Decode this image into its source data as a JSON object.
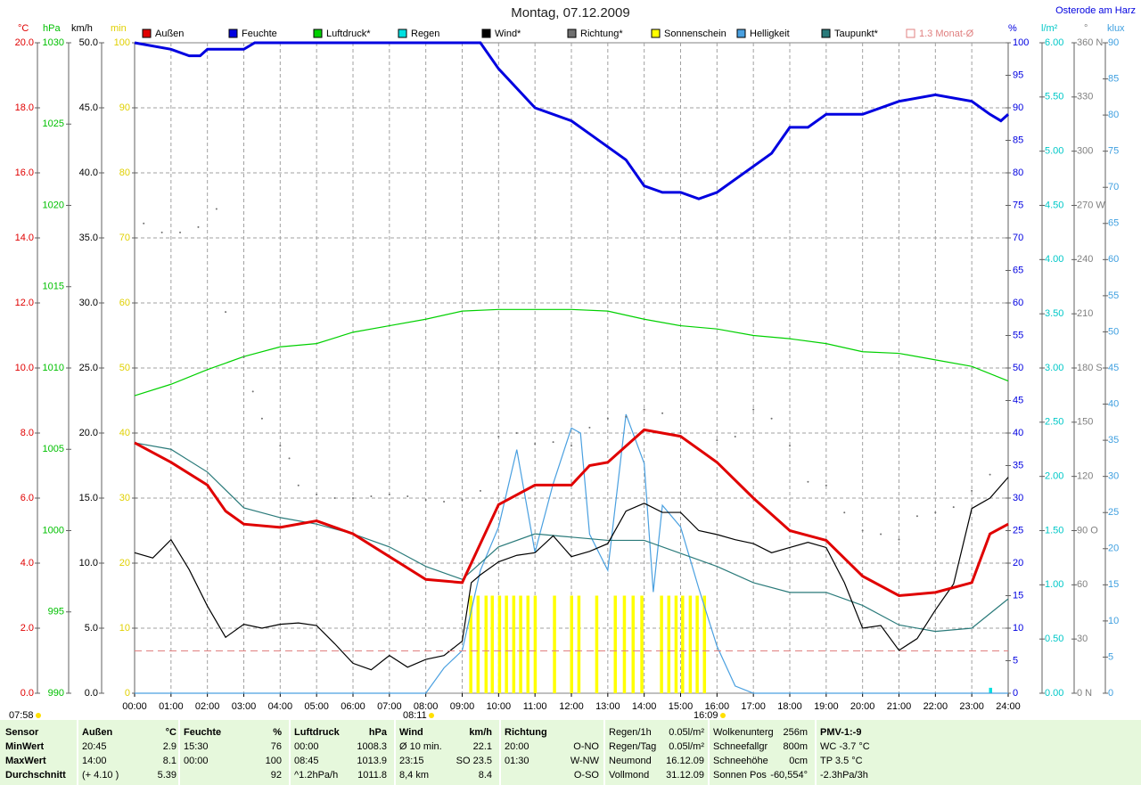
{
  "chart_data": {
    "type": "line",
    "title": "Montag, 07.12.2009",
    "location": "Osterode am Harz",
    "grid": true,
    "annotations": [
      "07:58",
      "08:11",
      "16:09"
    ],
    "xlim": [
      0,
      24
    ],
    "xticks": [
      {
        "value": 0,
        "label": "00:00"
      },
      {
        "value": 1,
        "label": "01:00"
      },
      {
        "value": 2,
        "label": "02:00"
      },
      {
        "value": 3,
        "label": "03:00"
      },
      {
        "value": 4,
        "label": "04:00"
      },
      {
        "value": 5,
        "label": "05:00"
      },
      {
        "value": 6,
        "label": "06:00"
      },
      {
        "value": 7,
        "label": "07:00"
      },
      {
        "value": 8,
        "label": "08:00"
      },
      {
        "value": 9,
        "label": "09:00"
      },
      {
        "value": 10,
        "label": "10:00"
      },
      {
        "value": 11,
        "label": "11:00"
      },
      {
        "value": 12,
        "label": "12:00"
      },
      {
        "value": 13,
        "label": "13:00"
      },
      {
        "value": 14,
        "label": "14:00"
      },
      {
        "value": 15,
        "label": "15:00"
      },
      {
        "value": 16,
        "label": "16:00"
      },
      {
        "value": 17,
        "label": "17:00"
      },
      {
        "value": 18,
        "label": "18:00"
      },
      {
        "value": 19,
        "label": "19:00"
      },
      {
        "value": 20,
        "label": "20:00"
      },
      {
        "value": 21,
        "label": "21:00"
      },
      {
        "value": 22,
        "label": "22:00"
      },
      {
        "value": 23,
        "label": "23:00"
      },
      {
        "value": 24,
        "label": "24:00"
      }
    ],
    "axes": [
      {
        "label": "°C",
        "color": "#e00000",
        "lim": [
          0,
          20
        ],
        "ticks": [
          {
            "value": 0,
            "label": "0.0"
          },
          {
            "value": 2,
            "label": "2.0"
          },
          {
            "value": 4,
            "label": "4.0"
          },
          {
            "value": 6,
            "label": "6.0"
          },
          {
            "value": 8,
            "label": "8.0"
          },
          {
            "value": 10,
            "label": "10.0"
          },
          {
            "value": 12,
            "label": "12.0"
          },
          {
            "value": 14,
            "label": "14.0"
          },
          {
            "value": 16,
            "label": "16.0"
          },
          {
            "value": 18,
            "label": "18.0"
          },
          {
            "value": 20,
            "label": "20.0"
          }
        ]
      },
      {
        "label": "hPa",
        "color": "#00c000",
        "lim": [
          990,
          1030
        ],
        "ticks": [
          990,
          995,
          1000,
          1005,
          1010,
          1015,
          1020,
          1025,
          1030
        ]
      },
      {
        "label": "km/h",
        "color": "#000000",
        "lim": [
          0,
          50
        ],
        "ticks": [
          {
            "value": 0,
            "label": "0.0"
          },
          {
            "value": 5,
            "label": "5.0"
          },
          {
            "value": 10,
            "label": "10.0"
          },
          {
            "value": 15,
            "label": "15.0"
          },
          {
            "value": 20,
            "label": "20.0"
          },
          {
            "value": 25,
            "label": "25.0"
          },
          {
            "value": 30,
            "label": "30.0"
          },
          {
            "value": 35,
            "label": "35.0"
          },
          {
            "value": 40,
            "label": "40.0"
          },
          {
            "value": 45,
            "label": "45.0"
          },
          {
            "value": 50,
            "label": "50.0"
          }
        ]
      },
      {
        "label": "min",
        "color": "#e0d000",
        "lim": [
          0,
          100
        ],
        "ticks": [
          0,
          10,
          20,
          30,
          40,
          50,
          60,
          70,
          80,
          90,
          100
        ]
      },
      {
        "label": "%",
        "color": "#0000e0",
        "lim": [
          0,
          100
        ],
        "ticks": [
          0,
          5,
          10,
          15,
          20,
          25,
          30,
          35,
          40,
          45,
          50,
          55,
          60,
          65,
          70,
          75,
          80,
          85,
          90,
          95,
          100
        ]
      },
      {
        "label": "l/m²",
        "color": "#00c8c8",
        "lim": [
          0,
          6
        ],
        "ticks": [
          {
            "value": 0,
            "label": "0.00"
          },
          {
            "value": 0.5,
            "label": "0.50"
          },
          {
            "value": 1,
            "label": "1.00"
          },
          {
            "value": 1.5,
            "label": "1.50"
          },
          {
            "value": 2,
            "label": "2.00"
          },
          {
            "value": 2.5,
            "label": "2.50"
          },
          {
            "value": 3,
            "label": "3.00"
          },
          {
            "value": 3.5,
            "label": "3.50"
          },
          {
            "value": 4,
            "label": "4.00"
          },
          {
            "value": 4.5,
            "label": "4.50"
          },
          {
            "value": 5,
            "label": "5.00"
          },
          {
            "value": 5.5,
            "label": "5.50"
          },
          {
            "value": 6,
            "label": "6.00"
          }
        ]
      },
      {
        "label": "°",
        "color": "#808080",
        "lim": [
          0,
          360
        ],
        "ticks": [
          {
            "value": 0,
            "label": "0 N"
          },
          30,
          60,
          {
            "value": 90,
            "label": "90 O"
          },
          120,
          150,
          {
            "value": 180,
            "label": "180 S"
          },
          210,
          240,
          {
            "value": 270,
            "label": "270 W"
          },
          300,
          330,
          {
            "value": 360,
            "label": "360 N"
          }
        ]
      },
      {
        "label": "klux",
        "color": "#40a0e0",
        "lim": [
          0,
          90
        ],
        "ticks": [
          0,
          5,
          10,
          15,
          20,
          25,
          30,
          35,
          40,
          45,
          50,
          55,
          60,
          65,
          70,
          75,
          80,
          85,
          90
        ]
      }
    ],
    "series": [
      {
        "name": "Außen",
        "kind": "line",
        "axis": 0,
        "color": "#e00000",
        "x": [
          0,
          1,
          2,
          2.5,
          3,
          4,
          5,
          6,
          7,
          8,
          9,
          10,
          11,
          12,
          12.5,
          13,
          14,
          15,
          16,
          17,
          18,
          19,
          20,
          21,
          22,
          23,
          23.5,
          24
        ],
        "values": [
          7.7,
          7.1,
          6.4,
          5.6,
          5.2,
          5.1,
          5.3,
          4.9,
          4.2,
          3.5,
          3.4,
          5.8,
          6.4,
          6.4,
          7.0,
          7.1,
          8.1,
          7.9,
          7.1,
          6.0,
          5.0,
          4.7,
          3.6,
          3.0,
          3.1,
          3.4,
          4.9,
          5.2
        ]
      },
      {
        "name": "Feuchte",
        "kind": "line",
        "axis": 4,
        "color": "#0000e0",
        "x": [
          0,
          1,
          1.5,
          1.8,
          2,
          3,
          3.3,
          9,
          9.5,
          10,
          11,
          12,
          12.5,
          13,
          13.5,
          14,
          14.5,
          15,
          15.5,
          16,
          17,
          17.5,
          18,
          18.5,
          19,
          19.5,
          20,
          21,
          22,
          23,
          23.5,
          23.8,
          24
        ],
        "values": [
          100,
          99,
          98,
          98,
          99,
          99,
          100,
          100,
          100,
          96,
          90,
          88,
          86,
          84,
          82,
          78,
          77,
          77,
          76,
          77,
          81,
          83,
          87,
          87,
          89,
          89,
          89,
          91,
          92,
          91,
          89,
          88,
          89
        ]
      },
      {
        "name": "Luftdruck*",
        "kind": "line",
        "axis": 1,
        "color": "#00d000",
        "x": [
          0,
          1,
          2,
          3,
          4,
          5,
          6,
          7,
          8,
          9,
          10,
          11,
          12,
          13,
          14,
          15,
          16,
          17,
          18,
          19,
          20,
          21,
          22,
          23,
          24
        ],
        "values": [
          1008.3,
          1009.0,
          1009.9,
          1010.7,
          1011.3,
          1011.5,
          1012.2,
          1012.6,
          1013.0,
          1013.5,
          1013.6,
          1013.6,
          1013.6,
          1013.5,
          1013.0,
          1012.6,
          1012.4,
          1012.0,
          1011.8,
          1011.5,
          1011.0,
          1010.9,
          1010.5,
          1010.1,
          1009.2
        ]
      },
      {
        "name": "Regen",
        "kind": "bar",
        "axis": 5,
        "color": "#00e0e0",
        "x": [
          23.51
        ],
        "values": [
          0.05
        ]
      },
      {
        "name": "Wind*",
        "kind": "line",
        "axis": 2,
        "color": "#000000",
        "x": [
          0,
          0.5,
          1,
          1.5,
          2,
          2.5,
          3,
          3.5,
          4,
          4.5,
          5,
          5.5,
          6,
          6.5,
          7,
          7.5,
          8,
          8.5,
          9,
          9.25,
          9.5,
          10,
          10.5,
          11,
          11.5,
          12,
          12.5,
          13,
          13.5,
          14,
          14.5,
          15,
          15.5,
          16,
          16.5,
          17,
          17.5,
          18,
          18.5,
          19,
          19.5,
          20,
          20.5,
          21,
          21.5,
          22,
          22.5,
          23,
          23.5,
          24
        ],
        "values": [
          10.8,
          10.4,
          11.8,
          9.5,
          6.7,
          4.3,
          5.3,
          5.0,
          5.3,
          5.4,
          5.2,
          3.8,
          2.3,
          1.8,
          2.9,
          2.0,
          2.6,
          2.9,
          4.0,
          8.5,
          9.1,
          10.1,
          10.6,
          10.8,
          12.1,
          10.5,
          10.9,
          11.5,
          14.0,
          14.6,
          13.9,
          13.9,
          12.5,
          12.2,
          11.8,
          11.5,
          10.8,
          11.2,
          11.6,
          11.2,
          8.5,
          5.0,
          5.2,
          3.3,
          4.2,
          6.4,
          8.4,
          14.2,
          15.0,
          16.6
        ]
      },
      {
        "name": "Richtung*",
        "kind": "scatter",
        "axis": 6,
        "color": "#707070",
        "x": [
          0.25,
          0.75,
          1.25,
          1.75,
          2.25,
          2.5,
          3,
          3.25,
          3.5,
          4,
          4.25,
          4.5,
          5,
          5.5,
          6,
          6.5,
          7,
          7.5,
          8,
          8.5,
          9,
          9.5,
          10,
          10.5,
          11,
          11.5,
          12,
          12.5,
          13,
          13.5,
          14,
          14.5,
          15,
          15.5,
          16,
          16.5,
          17,
          17.5,
          18,
          18.5,
          19,
          19.5,
          20,
          20.5,
          21,
          21.5,
          22,
          22.5,
          23,
          23.5
        ],
        "values": [
          260,
          255,
          255,
          258,
          268,
          211,
          186,
          167,
          152,
          137,
          130,
          115,
          110,
          108,
          108,
          109,
          110,
          109,
          107,
          106,
          107,
          112,
          142,
          144,
          138,
          139,
          137,
          147,
          152,
          153,
          157,
          155,
          144,
          135,
          140,
          142,
          157,
          152,
          137,
          117,
          115,
          100,
          90,
          88,
          85,
          98,
          100,
          103,
          112,
          121
        ]
      },
      {
        "name": "Sonnenschein",
        "kind": "bar",
        "axis": 3,
        "color": "#ffff00",
        "x": [
          9.23,
          9.43,
          9.65,
          9.82,
          10.02,
          10.21,
          10.41,
          10.6,
          10.8,
          11.0,
          11.53,
          12.0,
          12.2,
          12.69,
          13.2,
          13.45,
          13.69,
          13.93,
          14.47,
          14.67,
          14.87,
          15.05,
          15.26,
          15.45,
          15.65
        ],
        "values": [
          15,
          15,
          15,
          15,
          15,
          15,
          15,
          15,
          15,
          15,
          15,
          15,
          15,
          15,
          15,
          15,
          15,
          15,
          15,
          15,
          15,
          15,
          15,
          15,
          15
        ]
      },
      {
        "name": "Helligkeit",
        "kind": "line",
        "axis": 7,
        "color": "#4aa0e0",
        "x": [
          0,
          8,
          8.5,
          9,
          9.5,
          10,
          10.5,
          11,
          11.5,
          12,
          12.25,
          12.5,
          13,
          13.5,
          14,
          14.25,
          14.5,
          15,
          15.5,
          16,
          16.5,
          17,
          24
        ],
        "values": [
          0,
          0,
          3.5,
          5.9,
          17,
          23,
          33.7,
          19.5,
          29,
          36.7,
          36,
          22,
          17,
          38.6,
          31.8,
          14,
          26,
          23,
          14.5,
          6.5,
          1,
          0,
          0
        ]
      },
      {
        "name": "Taupunkt*",
        "kind": "line",
        "axis": 0,
        "color": "#2a7a7a",
        "x": [
          0,
          1,
          2,
          3,
          4,
          5,
          6,
          7,
          8,
          9,
          10,
          11,
          12,
          13,
          14,
          15,
          16,
          17,
          18,
          19,
          20,
          21,
          22,
          23,
          24
        ],
        "values": [
          7.7,
          7.5,
          6.8,
          5.7,
          5.4,
          5.2,
          4.9,
          4.5,
          3.9,
          3.5,
          4.5,
          4.9,
          4.8,
          4.7,
          4.7,
          4.3,
          3.9,
          3.4,
          3.1,
          3.1,
          2.7,
          2.1,
          1.9,
          2.0,
          2.9
        ]
      },
      {
        "name": "1.3 Monat-Ø",
        "kind": "hline",
        "axis": 0,
        "color": "#e08080",
        "values": [
          1.3
        ]
      }
    ]
  },
  "stats": [
    {
      "rows": [
        [
          "Sensor"
        ],
        [
          "MinWert"
        ],
        [
          "MaxWert"
        ],
        [
          "Durchschnitt"
        ]
      ]
    },
    {
      "rows": [
        [
          "Außen",
          "°C"
        ],
        [
          "20:45",
          "2.9"
        ],
        [
          "14:00",
          "8.1"
        ],
        [
          "(+ 4.10 )",
          "5.39"
        ]
      ]
    },
    {
      "rows": [
        [
          "Feuchte",
          "%"
        ],
        [
          "15:30",
          "76"
        ],
        [
          "00:00",
          "100"
        ],
        [
          null,
          "92"
        ]
      ]
    },
    {
      "rows": [
        [
          "Luftdruck",
          "hPa"
        ],
        [
          "00:00",
          "1008.3"
        ],
        [
          "08:45",
          "1013.9"
        ],
        [
          "^1.2hPa/h",
          "1011.8"
        ]
      ]
    },
    {
      "rows": [
        [
          "Wind",
          "km/h"
        ],
        [
          "Ø 10 min.",
          "22.1"
        ],
        [
          "23:15",
          "SO 23.5"
        ],
        [
          "8,4 km",
          "8.4"
        ]
      ]
    },
    {
      "rows": [
        [
          "Richtung",
          null
        ],
        [
          "20:00",
          "O-NO"
        ],
        [
          "01:30",
          "W-NW"
        ],
        [
          null,
          "O-SO"
        ]
      ]
    },
    {
      "rows": [
        [
          "Regen/1h",
          "0.05l/m²"
        ],
        [
          "Regen/Tag",
          "0.05l/m²"
        ],
        [
          "Neumond",
          "16.12.09"
        ],
        [
          "Vollmond",
          "31.12.09"
        ]
      ]
    },
    {
      "rows": [
        [
          "Wolkenunterg",
          "256m"
        ],
        [
          "Schneefallgr",
          "800m"
        ],
        [
          "Schneehöhe",
          "0cm"
        ],
        [
          "Sonnen Pos",
          "-60,554°"
        ]
      ]
    },
    {
      "rows": [
        [
          "PMV-1:-9"
        ],
        [
          "WC -3.7 °C"
        ],
        [
          "TP 3.5 °C"
        ],
        [
          "-2.3hPa/3h"
        ]
      ]
    }
  ]
}
